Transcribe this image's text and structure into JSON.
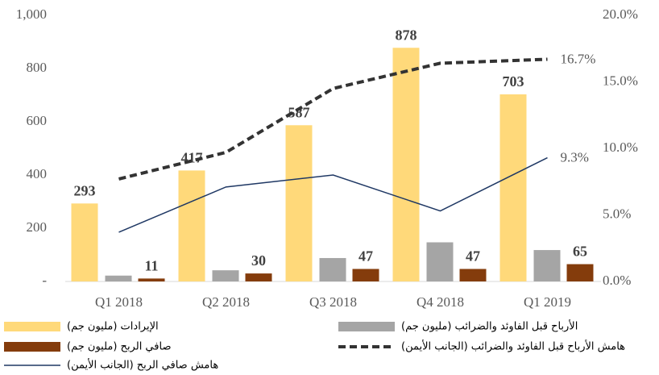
{
  "chart_data": {
    "type": "bar",
    "categories": [
      "Q1 2018",
      "Q2 2018",
      "Q3 2018",
      "Q4 2018",
      "Q1 2019"
    ],
    "series": [
      {
        "name": "الإيرادات (مليون جم)",
        "type": "bar",
        "color": "#ffd97a",
        "values": [
          293,
          417,
          587,
          878,
          703
        ]
      },
      {
        "name": "الأرباح قبل الفاوئد والضرائب (مليون جم)",
        "type": "bar",
        "color": "#a5a5a5",
        "values": [
          22,
          42,
          88,
          147,
          118
        ]
      },
      {
        "name": "صافي الربح (مليون جم)",
        "type": "bar",
        "color": "#843c0c",
        "values": [
          11,
          30,
          47,
          47,
          65
        ]
      },
      {
        "name": "هامش الأرباح قبل الفاوئد والضرائب (الجانب الأيمن)",
        "type": "line",
        "axis": "y2",
        "dashed": true,
        "color": "#333333",
        "values": [
          7.7,
          9.7,
          14.5,
          16.4,
          16.7
        ],
        "value_labels": [
          null,
          null,
          null,
          null,
          "16.7%"
        ]
      },
      {
        "name": "هامش صافي الربح  (الجانب الأيمن)",
        "type": "line",
        "axis": "y2",
        "dashed": false,
        "color": "#1f3864",
        "values": [
          3.7,
          7.1,
          8.0,
          5.3,
          9.3
        ],
        "value_labels": [
          null,
          null,
          null,
          null,
          "9.3%"
        ]
      }
    ],
    "labeled_series": [
      0,
      2
    ],
    "ylim": [
      0,
      1000
    ],
    "yticks": [
      {
        "value": 0,
        "label": "-"
      },
      200,
      400,
      600,
      800,
      {
        "value": 1000,
        "label": "1,000"
      }
    ],
    "y2lim": [
      0,
      20
    ],
    "y2ticks": [
      {
        "value": 0,
        "label": "0.0%"
      },
      {
        "value": 5,
        "label": "5.0%"
      },
      {
        "value": 10,
        "label": "10.0%"
      },
      {
        "value": 15,
        "label": "15.0%"
      },
      {
        "value": 20,
        "label": "20.0%"
      }
    ],
    "legend": "bottom"
  }
}
